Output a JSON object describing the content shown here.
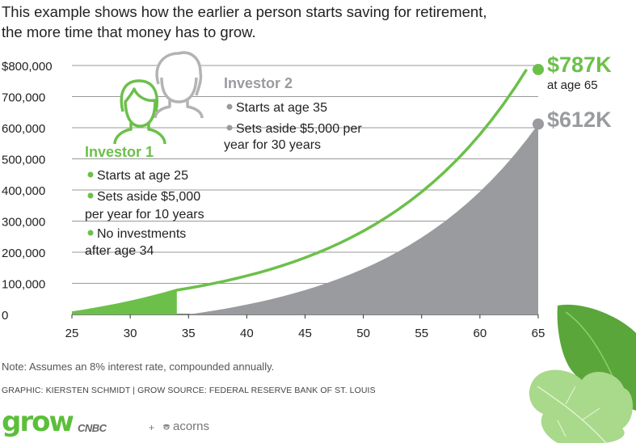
{
  "intro": {
    "line1": "This example shows how the earlier a person starts saving for retirement,",
    "line2": "the more time that money has to grow."
  },
  "chart_data": {
    "type": "area",
    "title": "",
    "xlabel": "",
    "ylabel": "",
    "x_ticks": [
      "25",
      "30",
      "35",
      "40",
      "45",
      "50",
      "55",
      "60",
      "65"
    ],
    "y_ticks": [
      "$800,000",
      "700,000",
      "600,000",
      "500,000",
      "400,000",
      "300,000",
      "200,000",
      "100,000",
      "0"
    ],
    "xlim": [
      25,
      65
    ],
    "ylim": [
      0,
      800000
    ],
    "grid": "horizontal",
    "interest_rate": 0.08,
    "series": [
      {
        "name": "Investor 1",
        "color": "#6cc04a",
        "x": [
          25,
          26,
          27,
          28,
          29,
          30,
          31,
          32,
          33,
          34,
          35,
          36,
          37,
          38,
          39,
          40,
          41,
          42,
          43,
          44,
          45,
          46,
          47,
          48,
          49,
          50,
          51,
          52,
          53,
          54,
          55,
          56,
          57,
          58,
          59,
          60,
          61,
          62,
          63,
          64,
          65
        ],
        "values": [
          5400,
          11232,
          17531,
          24333,
          31680,
          39614,
          48183,
          57438,
          67432,
          78227,
          84485,
          91244,
          98543,
          106427,
          114941,
          124136,
          134067,
          144792,
          156376,
          168886,
          182397,
          196989,
          212748,
          229768,
          248150,
          268002,
          289442,
          312597,
          337605,
          364613,
          393782,
          425285,
          459308,
          496052,
          535737,
          578596,
          624883,
          674874,
          728864,
          787173,
          787173
        ]
      },
      {
        "name": "Investor 2",
        "color": "#999b9e",
        "x": [
          35,
          36,
          37,
          38,
          39,
          40,
          41,
          42,
          43,
          44,
          45,
          46,
          47,
          48,
          49,
          50,
          51,
          52,
          53,
          54,
          55,
          56,
          57,
          58,
          59,
          60,
          61,
          62,
          63,
          64,
          65
        ],
        "values": [
          0,
          5400,
          11232,
          17531,
          24333,
          31680,
          39614,
          48183,
          57438,
          67432,
          78227,
          89885,
          102476,
          116074,
          130760,
          146621,
          163751,
          182251,
          202231,
          223810,
          247115,
          272284,
          299467,
          328824,
          360530,
          394772,
          431754,
          471694,
          514830,
          561416,
          611729
        ]
      }
    ],
    "annotations": {
      "investor1_total": "$787K",
      "investor1_age": "at age 65",
      "investor2_total": "$612K",
      "investor1": {
        "heading": "Investor 1",
        "bullet1": "Starts at age 25",
        "bullet2a": "Sets aside $5,000",
        "bullet2b": "per year for 10 years",
        "bullet3a": "No investments",
        "bullet3b": "after age 34"
      },
      "investor2": {
        "heading": "Investor 2",
        "bullet1": "Starts at age 35",
        "bullet2a": "Sets aside $5,000 per",
        "bullet2b": "year for 30 years"
      }
    }
  },
  "footer": {
    "note": "Note: Assumes an 8% interest rate, compounded annually.",
    "credit": "GRAPHIC: KIERSTEN SCHMIDT | GROW SOURCE: FEDERAL RESERVE BANK OF ST. LOUIS",
    "logo_grow": "grow",
    "logo_cnbc": "CNBC",
    "logo_plus": "+",
    "logo_acorns": "acorns"
  },
  "colors": {
    "green": "#6cc04a",
    "gray": "#999b9e",
    "grid": "#999999",
    "leaf_dark": "#5aa63a",
    "leaf_light": "#a9d98a"
  },
  "icons": [
    "person-outline-icon",
    "person-outline-icon",
    "oak-leaf-icon"
  ]
}
